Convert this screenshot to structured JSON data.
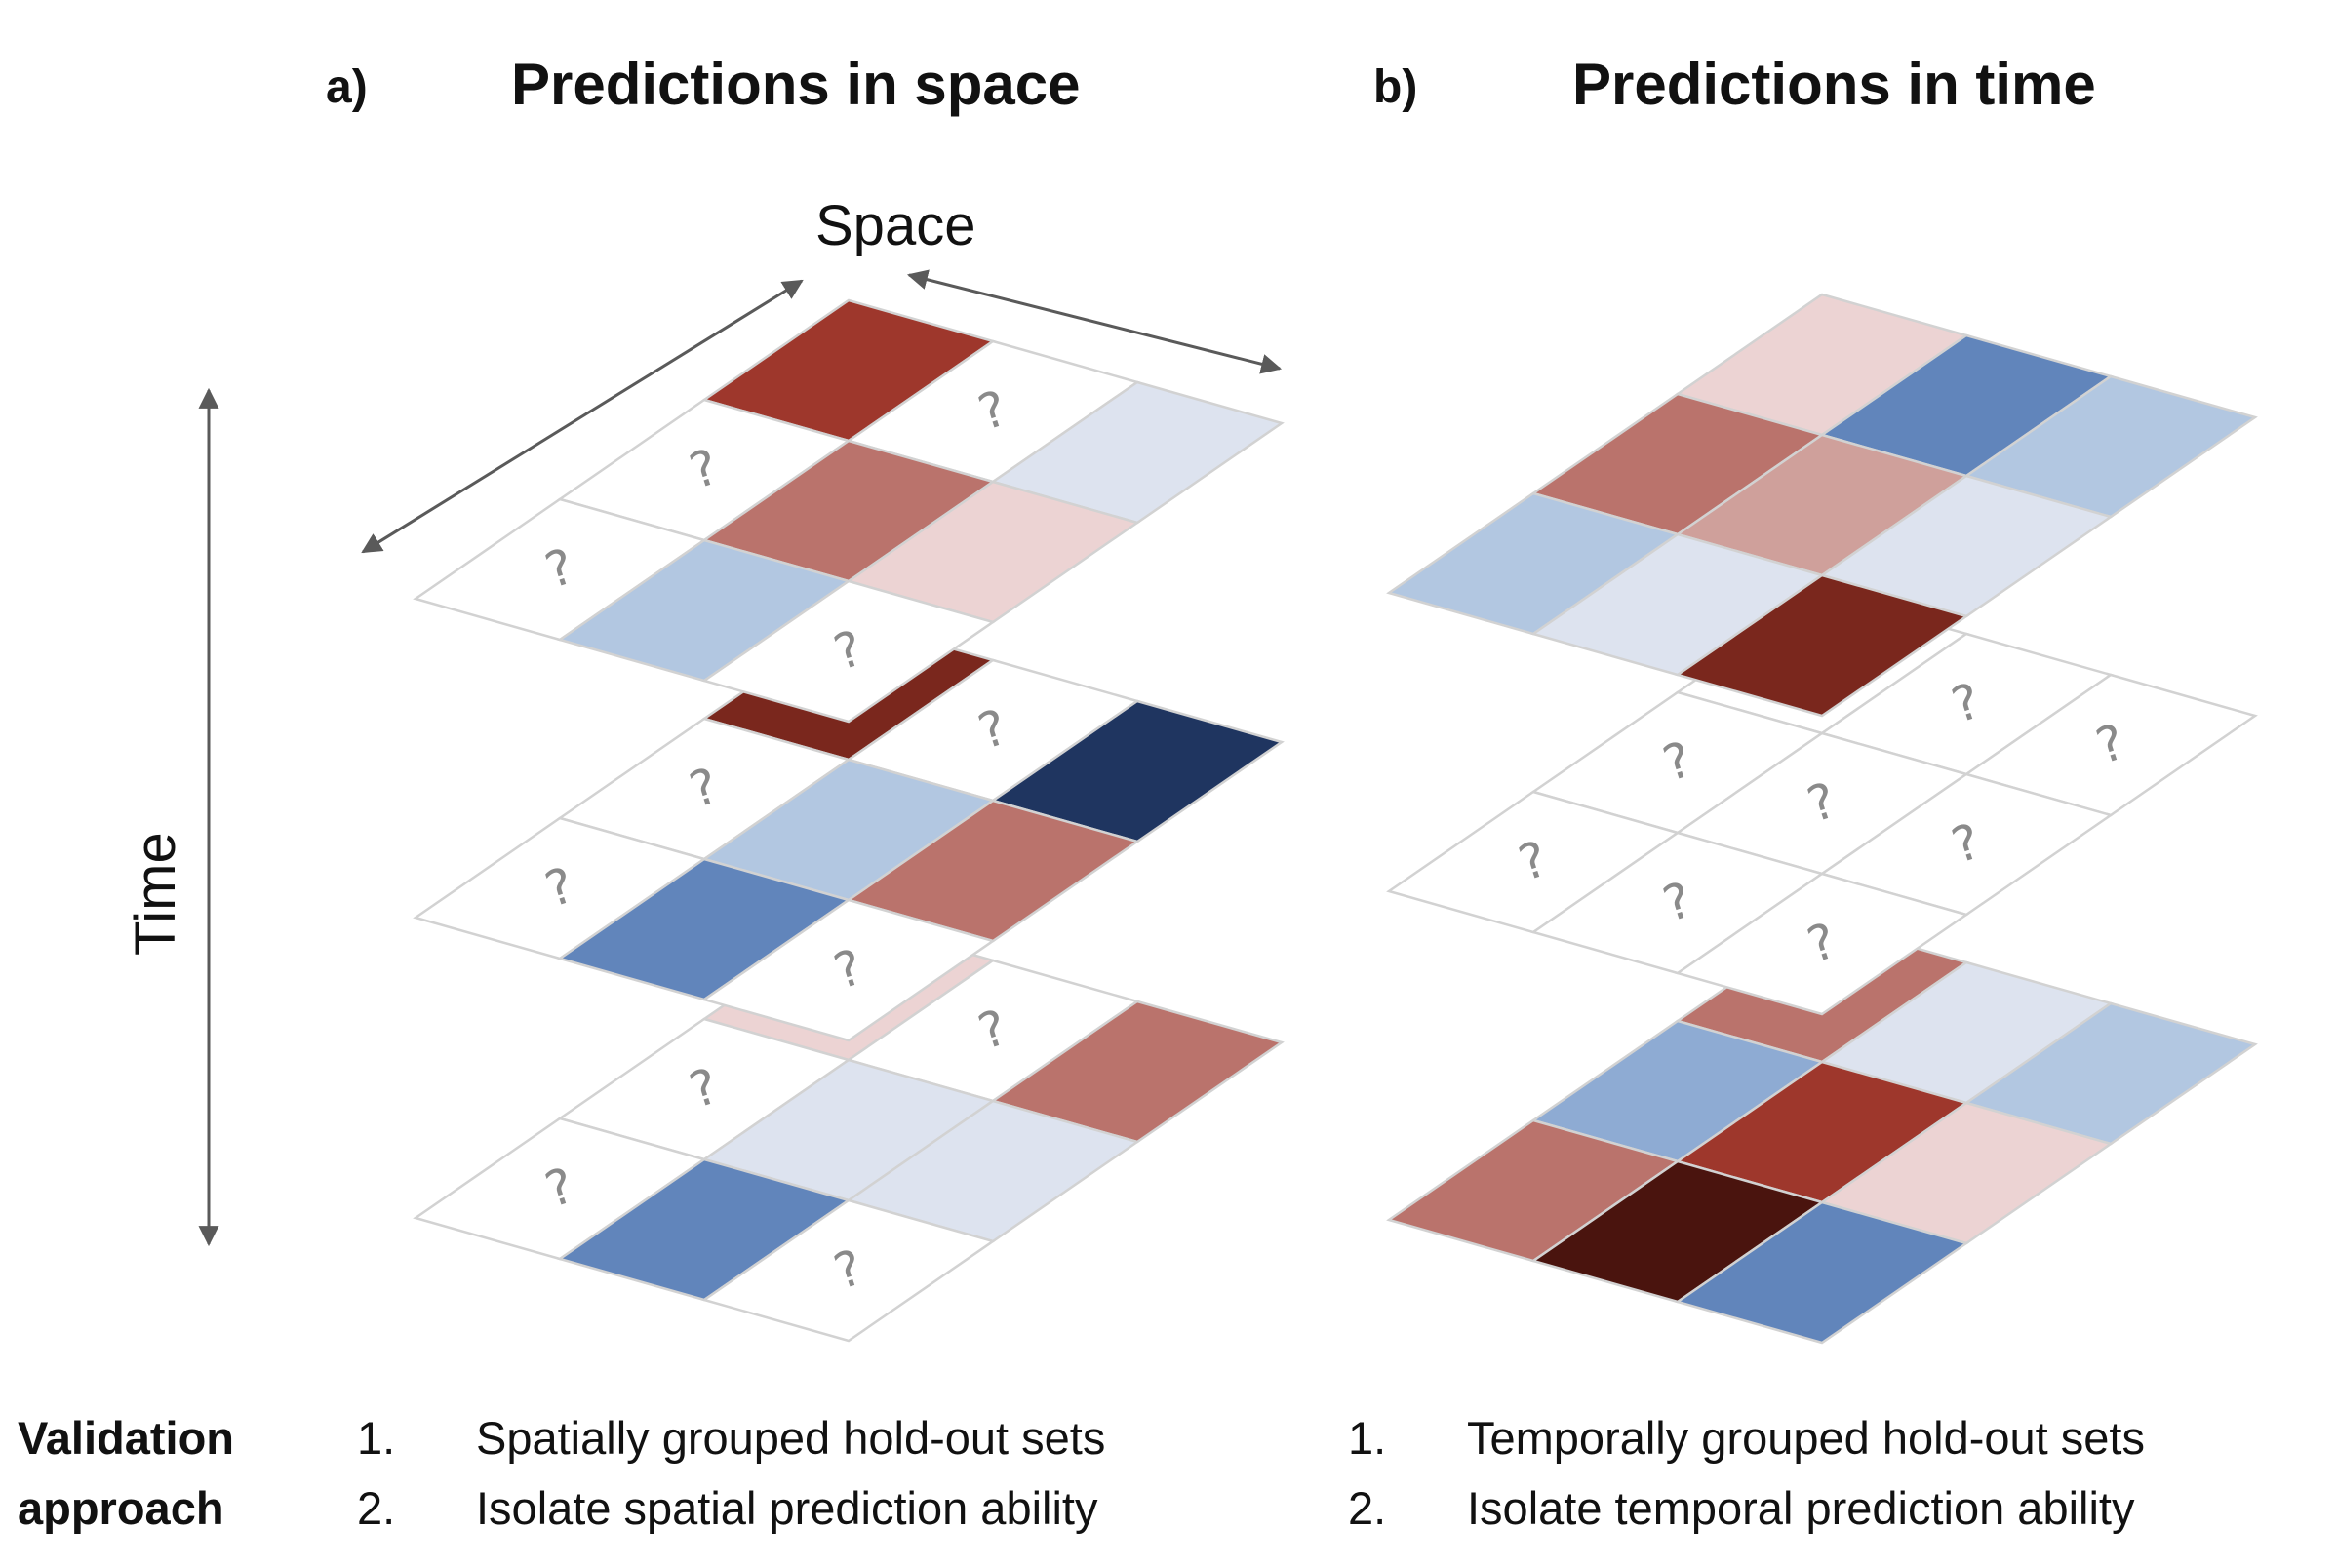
{
  "panels": {
    "a": {
      "letter": "a)",
      "title": "Predictions in space",
      "space_label": "Space",
      "time_label": "Time"
    },
    "b": {
      "letter": "b)",
      "title": "Predictions in time"
    }
  },
  "palette": {
    "w": "#ffffff",
    "r1": "#ecd3d3",
    "r2": "#cfa09b",
    "r3": "#ba736c",
    "r4": "#9e372c",
    "r5": "#7a271d",
    "r6": "#4a140e",
    "b1": "#dde3ef",
    "b2": "#b2c7e1",
    "b3": "#8eabd3",
    "b4": "#6185bb",
    "b5": "#1f3560",
    "grid": "#d2d2d2",
    "arrow": "#5a5a5a"
  },
  "unknown_symbol": "?",
  "grids": {
    "a_top": [
      "r4",
      "q",
      "b1",
      "q",
      "r3",
      "r1",
      "q",
      "b2",
      "q"
    ],
    "a_mid": [
      "r5",
      "q",
      "b5",
      "q",
      "b2",
      "r3",
      "q",
      "b4",
      "q"
    ],
    "a_bottom": [
      "r1",
      "q",
      "r3",
      "q",
      "b1",
      "b1",
      "q",
      "b4",
      "q"
    ],
    "b_top": [
      "r1",
      "b4",
      "b2",
      "r3",
      "r2",
      "b1",
      "b2",
      "b1",
      "r5"
    ],
    "b_mid": [
      "q",
      "q",
      "q",
      "q",
      "q",
      "q",
      "q",
      "q",
      "q"
    ],
    "b_bottom": [
      "r3",
      "b1",
      "b2",
      "b3",
      "r4",
      "r1",
      "r3",
      "r6",
      "b4"
    ]
  },
  "validation": {
    "heading_line1": "Validation",
    "heading_line2": "approach",
    "a": [
      {
        "num": "1.",
        "text": "Spatially grouped hold-out sets"
      },
      {
        "num": "2.",
        "text": "Isolate spatial prediction ability"
      }
    ],
    "b": [
      {
        "num": "1.",
        "text": "Temporally grouped hold-out sets"
      },
      {
        "num": "2.",
        "text": "Isolate temporal prediction ability"
      }
    ]
  }
}
